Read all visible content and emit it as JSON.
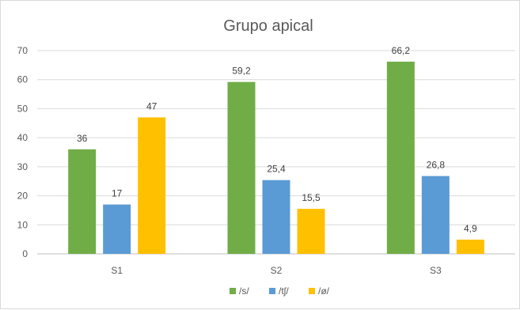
{
  "chart_data": {
    "type": "bar",
    "title": "Grupo apical",
    "categories": [
      "S1",
      "S2",
      "S3"
    ],
    "series": [
      {
        "name": "/s/",
        "color": "#70ad47",
        "values": [
          36,
          59.2,
          66.2
        ],
        "labels": [
          "36",
          "59,2",
          "66,2"
        ]
      },
      {
        "name": "/tʃ/",
        "color": "#5b9bd5",
        "values": [
          17,
          25.4,
          26.8
        ],
        "labels": [
          "17",
          "25,4",
          "26,8"
        ]
      },
      {
        "name": "/ø/",
        "color": "#ffc000",
        "values": [
          47,
          15.5,
          4.9
        ],
        "labels": [
          "47",
          "15,5",
          "4,9"
        ]
      }
    ],
    "ylim": [
      0,
      70
    ],
    "yticks": [
      0,
      10,
      20,
      30,
      40,
      50,
      60,
      70
    ],
    "grid": true,
    "legend": "bottom",
    "xlabel": "",
    "ylabel": ""
  }
}
